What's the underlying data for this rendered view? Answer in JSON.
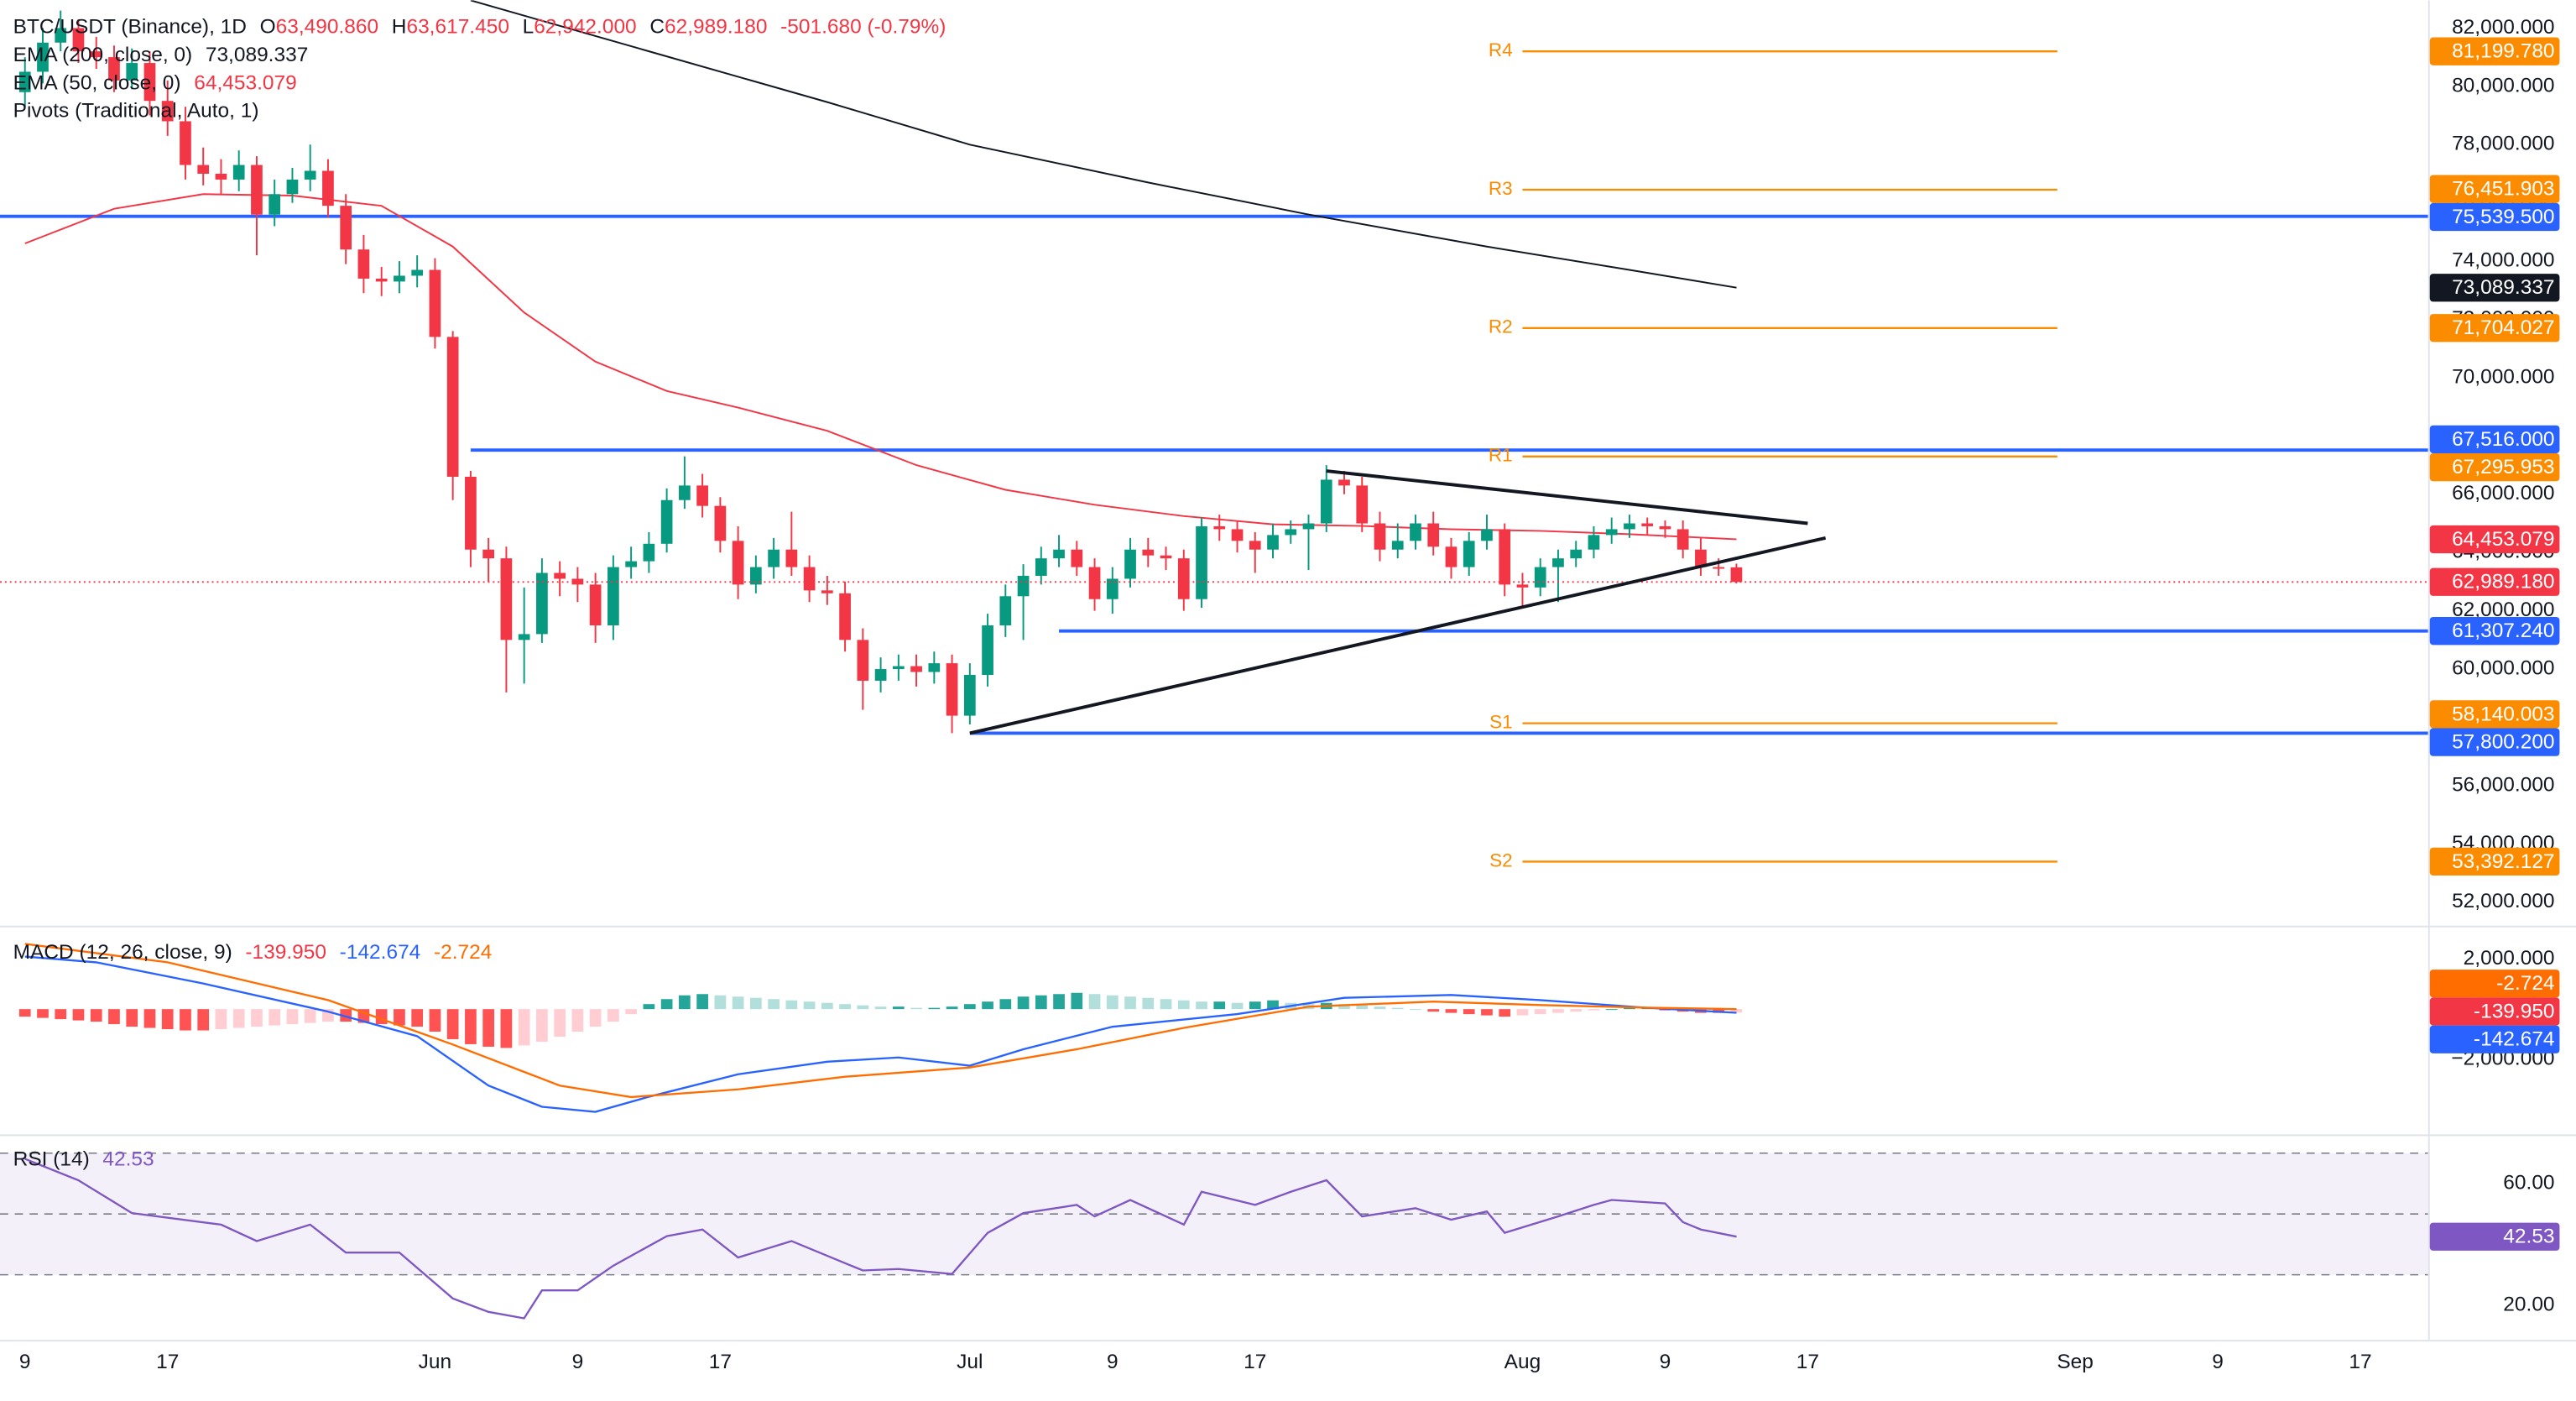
{
  "chart_data": {
    "type": "candlestick",
    "title": "BTC/USDT (Binance), 1D",
    "ohlc_legend": [
      {
        "prefix": "O",
        "value": 63490.86,
        "label": "63,490.860"
      },
      {
        "prefix": "H",
        "value": 63617.45,
        "label": "63,617.450"
      },
      {
        "prefix": "L",
        "value": 62942,
        "label": "62,942.000"
      },
      {
        "prefix": "C",
        "value": 62989.18,
        "label": "62,989.180"
      }
    ],
    "change_label": "-501.680 (-0.79%)",
    "xlim": [
      -1.4,
      134.8
    ],
    "xticks": [
      {
        "value": 0,
        "label": "9"
      },
      {
        "value": 8,
        "label": "17"
      },
      {
        "value": 23,
        "label": "Jun"
      },
      {
        "value": 31,
        "label": "9"
      },
      {
        "value": 39,
        "label": "17"
      },
      {
        "value": 53,
        "label": "Jul"
      },
      {
        "value": 61,
        "label": "9"
      },
      {
        "value": 69,
        "label": "17"
      },
      {
        "value": 84,
        "label": "Aug"
      },
      {
        "value": 92,
        "label": "9"
      },
      {
        "value": 100,
        "label": "17"
      },
      {
        "value": 115,
        "label": "Sep"
      },
      {
        "value": 123,
        "label": "9"
      },
      {
        "value": 131,
        "label": "17"
      }
    ],
    "ylim": [
      51250,
      82950
    ],
    "yticks": [
      {
        "value": 82000,
        "label": "82,000.000"
      },
      {
        "value": 80000,
        "label": "80,000.000"
      },
      {
        "value": 78000,
        "label": "78,000.000"
      },
      {
        "value": 76000,
        "label": "76,000.000"
      },
      {
        "value": 74000,
        "label": "74,000.000"
      },
      {
        "value": 72000,
        "label": "72,000.000"
      },
      {
        "value": 70000,
        "label": "70,000.000"
      },
      {
        "value": 68000,
        "label": "68,000.000"
      },
      {
        "value": 66000,
        "label": "66,000.000"
      },
      {
        "value": 64000,
        "label": "64,000.000"
      },
      {
        "value": 62000,
        "label": "62,000.000"
      },
      {
        "value": 60000,
        "label": "60,000.000"
      },
      {
        "value": 58000,
        "label": "58,000.000"
      },
      {
        "value": 56000,
        "label": "56,000.000"
      },
      {
        "value": 54000,
        "label": "54,000.000"
      },
      {
        "value": 52000,
        "label": "52,000.000"
      }
    ],
    "candles": {
      "up_color": "#089981",
      "down_color": "#f23645",
      "open": [
        79800,
        80500,
        81500,
        82000,
        81200,
        81000,
        80200,
        80800,
        79500,
        78800,
        77300,
        77000,
        76800,
        77300,
        75600,
        76300,
        76800,
        77100,
        75900,
        74400,
        73400,
        73300,
        73500,
        73700,
        71400,
        66600,
        64100,
        63800,
        61000,
        61200,
        63300,
        63100,
        62900,
        61500,
        63500,
        63700,
        64300,
        65800,
        66300,
        65600,
        64400,
        62900,
        63500,
        64100,
        63500,
        62700,
        62600,
        61000,
        59600,
        60000,
        60100,
        59900,
        60200,
        58400,
        59800,
        61500,
        62500,
        63200,
        63800,
        64100,
        63500,
        62400,
        63100,
        64100,
        63900,
        63800,
        62400,
        64900,
        64800,
        64400,
        64100,
        64600,
        64800,
        65000,
        66500,
        66300,
        65000,
        64100,
        64400,
        65000,
        64200,
        63500,
        64400,
        64800,
        62900,
        62800,
        63500,
        63800,
        64100,
        64600,
        64800,
        65000,
        64900,
        64800,
        64100,
        63500,
        63490.86
      ],
      "high": [
        81000,
        82000,
        82600,
        82300,
        81700,
        81400,
        81300,
        81200,
        80200,
        79300,
        77900,
        77500,
        77800,
        77600,
        76800,
        77200,
        78000,
        77500,
        76300,
        74900,
        73800,
        74000,
        74200,
        74100,
        71600,
        66800,
        64500,
        64200,
        62800,
        63800,
        63700,
        63500,
        63300,
        63900,
        64200,
        64700,
        66200,
        67300,
        66700,
        65900,
        64900,
        63900,
        64500,
        65400,
        63900,
        63200,
        63000,
        61400,
        60400,
        60500,
        60500,
        60600,
        60500,
        60200,
        61900,
        62900,
        63600,
        64200,
        64600,
        64400,
        63800,
        63500,
        64500,
        64500,
        64200,
        64100,
        65200,
        65300,
        65100,
        64700,
        65000,
        65100,
        65300,
        67000,
        66800,
        66600,
        65400,
        65000,
        65300,
        65400,
        64500,
        64700,
        65300,
        65000,
        63300,
        63800,
        64100,
        64400,
        64900,
        65200,
        65300,
        65200,
        65100,
        65100,
        64500,
        63800,
        63617.45
      ],
      "low": [
        79300,
        80100,
        81200,
        80800,
        80600,
        79800,
        79900,
        79000,
        78300,
        76800,
        76600,
        76300,
        76400,
        74200,
        75200,
        76000,
        76400,
        75500,
        73900,
        72900,
        72800,
        72900,
        73100,
        71000,
        65800,
        63500,
        63000,
        59200,
        59500,
        60900,
        62500,
        62300,
        60900,
        61000,
        63100,
        63300,
        64000,
        65500,
        65200,
        64000,
        62400,
        62600,
        63100,
        63200,
        62300,
        62200,
        60600,
        58600,
        59200,
        59600,
        59400,
        59500,
        57800,
        58100,
        59400,
        61100,
        61000,
        62900,
        63500,
        63200,
        62000,
        61900,
        62800,
        63500,
        63400,
        62000,
        62100,
        64400,
        64000,
        63300,
        63800,
        64300,
        63400,
        64700,
        66000,
        64700,
        63700,
        63800,
        64100,
        63900,
        63100,
        63200,
        64100,
        62500,
        62100,
        62500,
        62300,
        63500,
        63800,
        64300,
        64500,
        64600,
        64500,
        63800,
        63200,
        63200,
        62942
      ],
      "close": [
        80500,
        81500,
        82000,
        81200,
        81000,
        80200,
        80800,
        79500,
        78800,
        77300,
        77000,
        76800,
        77300,
        75600,
        76300,
        76800,
        77100,
        75900,
        74400,
        73400,
        73300,
        73500,
        73700,
        71400,
        66600,
        64100,
        63800,
        61000,
        61200,
        63300,
        63100,
        62900,
        61500,
        63500,
        63700,
        64300,
        65800,
        66300,
        65600,
        64400,
        62900,
        63500,
        64100,
        63500,
        62700,
        62600,
        61000,
        59600,
        60000,
        60100,
        59900,
        60200,
        58400,
        59800,
        61500,
        62500,
        63200,
        63800,
        64100,
        63500,
        62400,
        63100,
        64100,
        63900,
        63800,
        62400,
        64900,
        64800,
        64400,
        64100,
        64600,
        64800,
        65000,
        66500,
        66300,
        65000,
        64100,
        64400,
        65000,
        64200,
        63500,
        64400,
        64800,
        62900,
        62800,
        63500,
        63800,
        64100,
        64600,
        64800,
        65000,
        64900,
        64800,
        64100,
        63500,
        63490.86,
        62989.18
      ],
      "close_label": "62,989.180"
    },
    "series": [
      {
        "name": "EMA (200, close, 0)",
        "color": "#131722",
        "x": [
          25,
          35,
          45,
          53,
          63,
          72,
          82,
          90,
          96
        ],
        "values": [
          82950,
          81200,
          79460,
          78000,
          76700,
          75600,
          74500,
          73700,
          73089.337
        ],
        "last_label": "73,089.337"
      },
      {
        "name": "EMA (50, close, 0)",
        "color": "#f23645",
        "x": [
          0,
          5,
          10,
          15,
          20,
          24,
          28,
          32,
          36,
          40,
          45,
          50,
          55,
          60,
          65,
          70,
          75,
          80,
          85,
          90,
          96
        ],
        "values": [
          74610,
          75800,
          76300,
          76250,
          75900,
          74500,
          72240,
          70550,
          69540,
          68970,
          68180,
          67000,
          66150,
          65640,
          65250,
          64970,
          64910,
          64800,
          64740,
          64630,
          64453.079
        ],
        "last_label": "64,453.079"
      }
    ],
    "levels": {
      "color": "#2962ff",
      "lines": [
        {
          "value": 75539.5,
          "label": "75,539.500"
        },
        {
          "value": 67516,
          "label": "67,516.000",
          "from": 25
        },
        {
          "value": 61307.24,
          "label": "61,307.240",
          "from": 58
        },
        {
          "value": 57800.2,
          "label": "57,800.200",
          "from": 53
        }
      ]
    },
    "pivots": {
      "name": "Pivots (Traditional, Auto, 1)",
      "color": "#fb8c00",
      "from": 84,
      "to": 114,
      "levels": [
        {
          "name": "R4",
          "value": 81199.78,
          "label": "81,199.780"
        },
        {
          "name": "R3",
          "value": 76451.903,
          "label": "76,451.903"
        },
        {
          "name": "R2",
          "value": 71704.027,
          "label": "71,704.027"
        },
        {
          "name": "R1",
          "value": 67295.953,
          "label": "67,295.953"
        },
        {
          "name": "S1",
          "value": 58140.003,
          "label": "58,140.003"
        },
        {
          "name": "S2",
          "value": 53392.127,
          "label": "53,392.127"
        }
      ]
    },
    "trendlines": [
      {
        "color": "#131722",
        "points": [
          [
            73,
            66800
          ],
          [
            100,
            65000
          ]
        ]
      },
      {
        "color": "#131722",
        "points": [
          [
            53,
            57800
          ],
          [
            101,
            64500
          ]
        ]
      }
    ],
    "macd": {
      "title": "MACD (12, 26, close, 9)",
      "ylim": [
        -5000,
        3200
      ],
      "yticks": [
        {
          "value": 2000,
          "label": "2,000.000"
        },
        {
          "value": -2000,
          "label": "−2,000.000"
        }
      ],
      "histogram": {
        "colors": [
          "#26a69a",
          "#b2dfdb",
          "#ff5252",
          "#ffcdd2"
        ],
        "box_color": "#f23645",
        "values": [
          -300,
          -350,
          -400,
          -450,
          -500,
          -600,
          -700,
          -750,
          -800,
          -850,
          -850,
          -800,
          -750,
          -700,
          -650,
          -600,
          -550,
          -500,
          -500,
          -550,
          -600,
          -650,
          -700,
          -900,
          -1200,
          -1400,
          -1500,
          -1550,
          -1450,
          -1300,
          -1100,
          -900,
          -700,
          -500,
          -200,
          200,
          400,
          550,
          600,
          550,
          500,
          450,
          400,
          350,
          300,
          250,
          200,
          150,
          100,
          100,
          50,
          50,
          100,
          200,
          300,
          400,
          500,
          550,
          600,
          650,
          600,
          550,
          500,
          450,
          400,
          350,
          300,
          300,
          250,
          300,
          350,
          250,
          200,
          250,
          200,
          150,
          100,
          50,
          0,
          -100,
          -150,
          -200,
          -250,
          -300,
          -250,
          -200,
          -150,
          -100,
          -50,
          0,
          50,
          50,
          -50,
          -100,
          -150,
          -150,
          -139.95
        ],
        "last_label": "-139.950"
      },
      "series": [
        {
          "name": "MACD",
          "color": "#2962ff",
          "x": [
            0,
            4,
            10,
            17,
            22,
            26,
            29,
            32,
            35,
            40,
            45,
            49,
            53,
            56,
            61,
            68,
            74,
            80,
            85,
            91,
            96
          ],
          "values": [
            2100,
            1870,
            1020,
            -100,
            -1080,
            -3050,
            -3900,
            -4100,
            -3500,
            -2600,
            -2100,
            -1930,
            -2260,
            -1600,
            -700,
            -200,
            450,
            560,
            360,
            50,
            -142.674
          ],
          "last_label": "-142.674"
        },
        {
          "name": "Signal",
          "color": "#ff6d00",
          "x": [
            0,
            8,
            17,
            24,
            30,
            34,
            40,
            46,
            53,
            59,
            65,
            72,
            79,
            85,
            91,
            96
          ],
          "values": [
            2600,
            1870,
            360,
            -1410,
            -3050,
            -3510,
            -3200,
            -2700,
            -2330,
            -1600,
            -750,
            100,
            300,
            160,
            60,
            -2.724
          ],
          "last_label": "-2.724"
        }
      ]
    },
    "rsi": {
      "title": "RSI (14)",
      "color": "#7e57c2",
      "ylim": [
        8.6,
        75.1
      ],
      "yticks": [
        {
          "value": 60,
          "label": "60.00"
        },
        {
          "value": 20,
          "label": "20.00"
        }
      ],
      "bands": [
        70,
        50,
        30
      ],
      "x": [
        0,
        3,
        6,
        11,
        13,
        16,
        18,
        21,
        24,
        26,
        28,
        29,
        31,
        33,
        36,
        38,
        40,
        43,
        47,
        49,
        52,
        54,
        56,
        59,
        60,
        62,
        65,
        66,
        69,
        71,
        73,
        75,
        78,
        80,
        82,
        83,
        86,
        88,
        89,
        92,
        93,
        94,
        96
      ],
      "values": [
        68.1,
        61.1,
        50.3,
        46.5,
        41.1,
        46.5,
        37.3,
        37.3,
        22.2,
        17.8,
        15.7,
        24.9,
        24.9,
        33.0,
        42.7,
        44.9,
        35.7,
        41.1,
        31.4,
        31.9,
        30.3,
        43.8,
        50.3,
        53.0,
        49.2,
        54.6,
        46.5,
        57.3,
        53.0,
        57.3,
        61.1,
        49.2,
        51.9,
        48.1,
        50.8,
        43.8,
        49.2,
        53.0,
        54.6,
        53.5,
        47.3,
        44.9,
        42.53
      ],
      "last_label": "42.53"
    }
  }
}
